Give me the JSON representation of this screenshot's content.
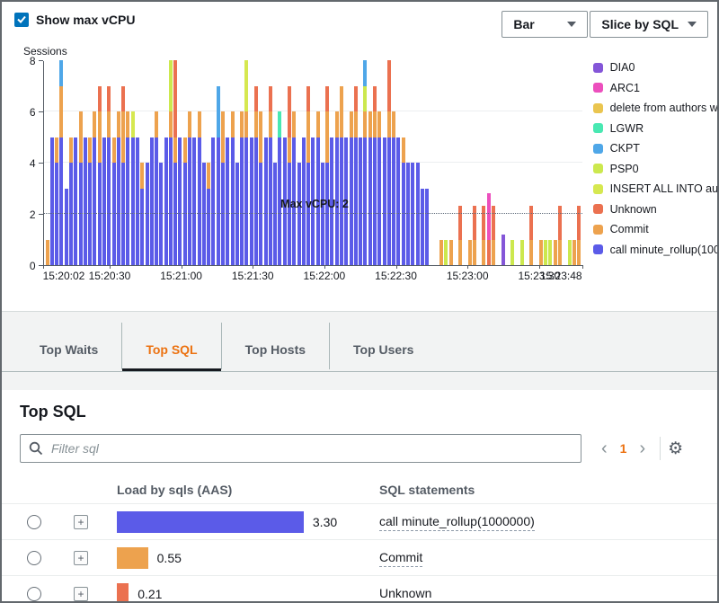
{
  "colors": {
    "checkbox_blue": "#0073BB",
    "tab_active_orange": "#EC7211",
    "pagination_orange": "#EC7211",
    "axis_gray": "#545B64"
  },
  "icons": {
    "expand": "+",
    "gear": "⚙",
    "prev": "‹",
    "next": "›"
  },
  "controls": {
    "show_max_vcpu": "Show max vCPU",
    "chart_type": "Bar",
    "slice_by": "Slice by SQL"
  },
  "chart_data": {
    "type": "bar",
    "stacked": true,
    "ylabel": "Sessions",
    "ylim": [
      0,
      8
    ],
    "yticks": [
      0,
      2,
      4,
      6,
      8
    ],
    "gridlines": [
      4,
      6
    ],
    "xticks": [
      "15:20:02",
      "15:20:30",
      "15:21:00",
      "15:21:30",
      "15:22:00",
      "15:22:30",
      "15:23:00",
      "15:23:30",
      "15:23:48"
    ],
    "bar_interval_seconds": 2,
    "max_vcpu": {
      "label": "Max vCPU: 2",
      "value": 2
    },
    "legend_position": "right",
    "legend": [
      {
        "key": "P",
        "label": "DIA0",
        "color": "#8456D8"
      },
      {
        "key": "M",
        "label": "ARC1",
        "color": "#EC4FBD"
      },
      {
        "key": "G",
        "label": "delete from authors w",
        "color": "#EAC54F"
      },
      {
        "key": "T",
        "label": "LGWR",
        "color": "#49E8B2"
      },
      {
        "key": "C",
        "label": "CKPT",
        "color": "#4FA7E8"
      },
      {
        "key": "Y",
        "label": "PSP0",
        "color": "#CCE84E"
      },
      {
        "key": "I",
        "label": "INSERT ALL  INTO au",
        "color": "#D6E850"
      },
      {
        "key": "R",
        "label": "Unknown",
        "color": "#EB7150"
      },
      {
        "key": "O",
        "label": "Commit",
        "color": "#EDA24E"
      },
      {
        "key": "B",
        "label": "call minute_rollup(100",
        "color": "#5B5BE8"
      }
    ],
    "bars": [
      [
        [
          "O",
          1
        ]
      ],
      [
        [
          "B",
          5
        ]
      ],
      [
        [
          "B",
          4
        ],
        [
          "O",
          1
        ]
      ],
      [
        [
          "B",
          5
        ],
        [
          "O",
          2
        ],
        [
          "C",
          1
        ]
      ],
      [
        [
          "B",
          3
        ]
      ],
      [
        [
          "B",
          4
        ],
        [
          "O",
          1
        ]
      ],
      [
        [
          "B",
          5
        ]
      ],
      [
        [
          "B",
          4
        ],
        [
          "O",
          2
        ]
      ],
      [
        [
          "B",
          5
        ]
      ],
      [
        [
          "B",
          4
        ],
        [
          "O",
          1
        ]
      ],
      [
        [
          "B",
          5
        ],
        [
          "O",
          1
        ]
      ],
      [
        [
          "B",
          4
        ],
        [
          "O",
          2
        ],
        [
          "R",
          1
        ]
      ],
      [
        [
          "B",
          5
        ]
      ],
      [
        [
          "B",
          5
        ],
        [
          "O",
          1
        ],
        [
          "R",
          1
        ]
      ],
      [
        [
          "B",
          4
        ],
        [
          "O",
          1
        ]
      ],
      [
        [
          "B",
          5
        ],
        [
          "O",
          1
        ]
      ],
      [
        [
          "B",
          4
        ],
        [
          "O",
          2
        ],
        [
          "R",
          1
        ]
      ],
      [
        [
          "B",
          5
        ],
        [
          "O",
          1
        ]
      ],
      [
        [
          "B",
          5
        ],
        [
          "I",
          1
        ]
      ],
      [
        [
          "B",
          5
        ]
      ],
      [
        [
          "B",
          3
        ],
        [
          "O",
          1
        ]
      ],
      [
        [
          "B",
          4
        ]
      ],
      [
        [
          "B",
          5
        ]
      ],
      [
        [
          "B",
          5
        ],
        [
          "O",
          1
        ]
      ],
      [
        [
          "B",
          4
        ]
      ],
      [
        [
          "B",
          5
        ]
      ],
      [
        [
          "B",
          5
        ],
        [
          "O",
          1
        ],
        [
          "Y",
          2
        ]
      ],
      [
        [
          "B",
          4
        ],
        [
          "O",
          1
        ],
        [
          "R",
          3
        ]
      ],
      [
        [
          "B",
          5
        ]
      ],
      [
        [
          "B",
          4
        ],
        [
          "O",
          1
        ]
      ],
      [
        [
          "B",
          5
        ],
        [
          "O",
          1
        ]
      ],
      [
        [
          "B",
          5
        ]
      ],
      [
        [
          "B",
          5
        ],
        [
          "O",
          1
        ]
      ],
      [
        [
          "B",
          4
        ]
      ],
      [
        [
          "B",
          3
        ],
        [
          "O",
          1
        ]
      ],
      [
        [
          "B",
          5
        ]
      ],
      [
        [
          "B",
          5
        ],
        [
          "C",
          2
        ]
      ],
      [
        [
          "B",
          4
        ],
        [
          "O",
          2
        ]
      ],
      [
        [
          "B",
          5
        ]
      ],
      [
        [
          "B",
          5
        ],
        [
          "O",
          1
        ]
      ],
      [
        [
          "B",
          4
        ]
      ],
      [
        [
          "B",
          5
        ],
        [
          "O",
          1
        ]
      ],
      [
        [
          "B",
          5
        ],
        [
          "O",
          1
        ],
        [
          "I",
          2
        ]
      ],
      [
        [
          "B",
          5
        ]
      ],
      [
        [
          "B",
          5
        ],
        [
          "O",
          1
        ],
        [
          "R",
          1
        ]
      ],
      [
        [
          "B",
          4
        ],
        [
          "O",
          2
        ]
      ],
      [
        [
          "B",
          5
        ]
      ],
      [
        [
          "B",
          5
        ],
        [
          "O",
          1
        ],
        [
          "R",
          1
        ]
      ],
      [
        [
          "B",
          4
        ]
      ],
      [
        [
          "B",
          5
        ],
        [
          "T",
          1
        ]
      ],
      [
        [
          "B",
          5
        ]
      ],
      [
        [
          "B",
          4
        ],
        [
          "O",
          1
        ],
        [
          "R",
          2
        ]
      ],
      [
        [
          "B",
          5
        ],
        [
          "O",
          1
        ]
      ],
      [
        [
          "B",
          4
        ]
      ],
      [
        [
          "B",
          5
        ]
      ],
      [
        [
          "B",
          4
        ],
        [
          "O",
          2
        ],
        [
          "R",
          1
        ]
      ],
      [
        [
          "B",
          5
        ]
      ],
      [
        [
          "B",
          5
        ],
        [
          "O",
          1
        ]
      ],
      [
        [
          "B",
          4
        ]
      ],
      [
        [
          "B",
          4
        ],
        [
          "O",
          2
        ],
        [
          "R",
          1
        ]
      ],
      [
        [
          "B",
          5
        ]
      ],
      [
        [
          "B",
          5
        ],
        [
          "O",
          1
        ]
      ],
      [
        [
          "B",
          5
        ],
        [
          "O",
          2
        ]
      ],
      [
        [
          "B",
          5
        ]
      ],
      [
        [
          "B",
          5
        ],
        [
          "O",
          1
        ]
      ],
      [
        [
          "B",
          5
        ],
        [
          "O",
          1
        ],
        [
          "R",
          1
        ]
      ],
      [
        [
          "B",
          5
        ]
      ],
      [
        [
          "B",
          5
        ],
        [
          "O",
          1
        ],
        [
          "Y",
          1
        ],
        [
          "C",
          1
        ]
      ],
      [
        [
          "B",
          5
        ],
        [
          "O",
          1
        ]
      ],
      [
        [
          "B",
          5
        ],
        [
          "O",
          1
        ],
        [
          "R",
          1
        ]
      ],
      [
        [
          "B",
          5
        ],
        [
          "O",
          1
        ]
      ],
      [
        [
          "B",
          5
        ]
      ],
      [
        [
          "B",
          5
        ],
        [
          "O",
          1
        ],
        [
          "R",
          2
        ]
      ],
      [
        [
          "B",
          5
        ],
        [
          "O",
          1
        ]
      ],
      [
        [
          "B",
          5
        ]
      ],
      [
        [
          "B",
          4
        ],
        [
          "O",
          1
        ]
      ],
      [
        [
          "B",
          4
        ]
      ],
      [
        [
          "B",
          4
        ]
      ],
      [
        [
          "B",
          4
        ]
      ],
      [
        [
          "B",
          3
        ]
      ],
      [
        [
          "B",
          3
        ]
      ],
      [],
      [],
      [
        [
          "O",
          1
        ]
      ],
      [
        [
          "Y",
          1
        ]
      ],
      [
        [
          "O",
          1
        ]
      ],
      [],
      [
        [
          "O",
          1
        ],
        [
          "R",
          1.3
        ]
      ],
      [],
      [
        [
          "O",
          1
        ]
      ],
      [
        [
          "O",
          1
        ],
        [
          "R",
          1.3
        ]
      ],
      [],
      [
        [
          "O",
          1
        ],
        [
          "R",
          1.3
        ]
      ],
      [
        [
          "R",
          1
        ],
        [
          "M",
          1.8
        ]
      ],
      [
        [
          "O",
          1
        ],
        [
          "R",
          1.3
        ]
      ],
      [],
      [
        [
          "P",
          1.2
        ]
      ],
      [],
      [
        [
          "Y",
          1
        ]
      ],
      [],
      [
        [
          "Y",
          1
        ]
      ],
      [],
      [
        [
          "O",
          1
        ],
        [
          "R",
          1.3
        ]
      ],
      [],
      [
        [
          "O",
          1
        ]
      ],
      [
        [
          "Y",
          1
        ]
      ],
      [
        [
          "Y",
          1
        ]
      ],
      [
        [
          "O",
          1
        ]
      ],
      [
        [
          "O",
          1
        ],
        [
          "R",
          1.3
        ]
      ],
      [],
      [
        [
          "Y",
          1
        ]
      ],
      [
        [
          "O",
          1
        ]
      ],
      [
        [
          "O",
          1
        ],
        [
          "R",
          1.3
        ]
      ]
    ]
  },
  "tabs": [
    {
      "label": "Top Waits",
      "active": false
    },
    {
      "label": "Top SQL",
      "active": true
    },
    {
      "label": "Top Hosts",
      "active": false
    },
    {
      "label": "Top Users",
      "active": false
    }
  ],
  "panel": {
    "title": "Top SQL",
    "filter_placeholder": "Filter sql",
    "pagination": {
      "page": "1"
    },
    "columns": [
      "Load by sqls (AAS)",
      "SQL statements"
    ],
    "rows": [
      {
        "load_aas": "3.30",
        "bar_value": 3.3,
        "bar_color": "#5B5BE8",
        "sql": "call minute_rollup(1000000)"
      },
      {
        "load_aas": "0.55",
        "bar_value": 0.55,
        "bar_color": "#EDA24E",
        "sql": "Commit"
      },
      {
        "load_aas": "0.21",
        "bar_value": 0.21,
        "bar_color": "#EB7150",
        "sql": "Unknown"
      }
    ]
  }
}
